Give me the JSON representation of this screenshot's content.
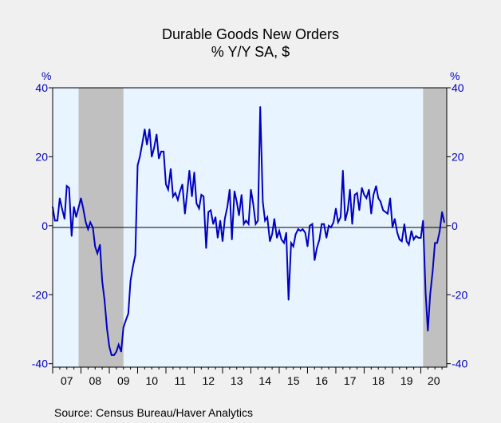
{
  "chart_data": {
    "type": "line",
    "title": "Durable Goods New Orders",
    "subtitle": "% Y/Y   SA, $",
    "ylabel_left": "%",
    "ylabel_right": "%",
    "source": "Source:  Census Bureau/Haver Analytics",
    "ylim": [
      -41,
      40
    ],
    "yticks": [
      40,
      20,
      0,
      -20,
      -40
    ],
    "ytick_labels": [
      "40",
      "20",
      "0",
      "-20",
      "-40"
    ],
    "x_range": [
      2007.0,
      2020.917
    ],
    "xtick_labels": [
      "07",
      "08",
      "09",
      "10",
      "11",
      "12",
      "13",
      "14",
      "15",
      "16",
      "17",
      "18",
      "19",
      "20"
    ],
    "recessions": [
      [
        2007.917,
        2009.5
      ],
      [
        2020.083,
        2020.917
      ]
    ],
    "colors": {
      "line": "#0000c0",
      "recession": "#c0c0c0",
      "plot_bg": "#e8f4ff",
      "zero_line": "#000000"
    },
    "series": [
      {
        "values": [
          [
            2007.0,
            5.5
          ],
          [
            2007.08,
            1.5
          ],
          [
            2007.17,
            1.5
          ],
          [
            2007.25,
            8.0
          ],
          [
            2007.33,
            5.0
          ],
          [
            2007.42,
            2.0
          ],
          [
            2007.5,
            11.5
          ],
          [
            2007.58,
            11.0
          ],
          [
            2007.67,
            -3.0
          ],
          [
            2007.75,
            5.5
          ],
          [
            2007.83,
            2.5
          ],
          [
            2007.92,
            5.5
          ],
          [
            2008.0,
            8.0
          ],
          [
            2008.08,
            5.0
          ],
          [
            2008.17,
            1.0
          ],
          [
            2008.25,
            -1.0
          ],
          [
            2008.33,
            1.0
          ],
          [
            2008.42,
            -0.5
          ],
          [
            2008.5,
            -6.0
          ],
          [
            2008.58,
            -8.0
          ],
          [
            2008.67,
            -5.5
          ],
          [
            2008.75,
            -16.0
          ],
          [
            2008.83,
            -21.5
          ],
          [
            2008.92,
            -30.0
          ],
          [
            2009.0,
            -35.0
          ],
          [
            2009.08,
            -37.5
          ],
          [
            2009.17,
            -37.5
          ],
          [
            2009.25,
            -36.5
          ],
          [
            2009.33,
            -34.5
          ],
          [
            2009.42,
            -36.5
          ],
          [
            2009.5,
            -29.5
          ],
          [
            2009.58,
            -27.5
          ],
          [
            2009.67,
            -25.5
          ],
          [
            2009.75,
            -16.0
          ],
          [
            2009.83,
            -12.0
          ],
          [
            2009.92,
            -8.5
          ],
          [
            2010.0,
            17.5
          ],
          [
            2010.08,
            20.0
          ],
          [
            2010.17,
            24.0
          ],
          [
            2010.25,
            28.0
          ],
          [
            2010.33,
            23.5
          ],
          [
            2010.42,
            28.0
          ],
          [
            2010.5,
            20.0
          ],
          [
            2010.58,
            22.5
          ],
          [
            2010.67,
            26.5
          ],
          [
            2010.75,
            19.5
          ],
          [
            2010.83,
            21.5
          ],
          [
            2010.92,
            21.5
          ],
          [
            2011.0,
            12.0
          ],
          [
            2011.08,
            10.5
          ],
          [
            2011.17,
            16.5
          ],
          [
            2011.25,
            8.5
          ],
          [
            2011.33,
            9.5
          ],
          [
            2011.42,
            7.5
          ],
          [
            2011.5,
            10.0
          ],
          [
            2011.58,
            12.0
          ],
          [
            2011.67,
            3.5
          ],
          [
            2011.75,
            9.5
          ],
          [
            2011.83,
            16.0
          ],
          [
            2011.92,
            8.5
          ],
          [
            2012.0,
            15.5
          ],
          [
            2012.08,
            6.5
          ],
          [
            2012.17,
            5.0
          ],
          [
            2012.25,
            9.0
          ],
          [
            2012.33,
            8.5
          ],
          [
            2012.42,
            -6.5
          ],
          [
            2012.5,
            4.0
          ],
          [
            2012.58,
            4.5
          ],
          [
            2012.67,
            0.5
          ],
          [
            2012.75,
            2.5
          ],
          [
            2012.83,
            -3.5
          ],
          [
            2012.92,
            1.5
          ],
          [
            2013.0,
            -4.5
          ],
          [
            2013.08,
            2.0
          ],
          [
            2013.17,
            5.5
          ],
          [
            2013.25,
            10.5
          ],
          [
            2013.33,
            -4.0
          ],
          [
            2013.42,
            10.0
          ],
          [
            2013.5,
            7.0
          ],
          [
            2013.58,
            3.0
          ],
          [
            2013.67,
            9.0
          ],
          [
            2013.75,
            0.5
          ],
          [
            2013.83,
            1.5
          ],
          [
            2013.92,
            0.5
          ],
          [
            2014.0,
            10.5
          ],
          [
            2014.08,
            6.5
          ],
          [
            2014.17,
            0.5
          ],
          [
            2014.25,
            1.5
          ],
          [
            2014.33,
            34.5
          ],
          [
            2014.42,
            7.0
          ],
          [
            2014.5,
            1.5
          ],
          [
            2014.58,
            2.5
          ],
          [
            2014.67,
            -4.5
          ],
          [
            2014.75,
            -2.5
          ],
          [
            2014.83,
            2.0
          ],
          [
            2014.92,
            -3.5
          ],
          [
            2015.0,
            -1.5
          ],
          [
            2015.08,
            -4.0
          ],
          [
            2015.17,
            -5.0
          ],
          [
            2015.25,
            -2.0
          ],
          [
            2015.33,
            -21.5
          ],
          [
            2015.42,
            -5.0
          ],
          [
            2015.5,
            -6.0
          ],
          [
            2015.58,
            -2.5
          ],
          [
            2015.67,
            -1.0
          ],
          [
            2015.75,
            -1.5
          ],
          [
            2015.83,
            -1.0
          ],
          [
            2015.92,
            -2.0
          ],
          [
            2016.0,
            -6.0
          ],
          [
            2016.08,
            0.0
          ],
          [
            2016.17,
            0.5
          ],
          [
            2016.25,
            -10.0
          ],
          [
            2016.33,
            -6.5
          ],
          [
            2016.42,
            -4.0
          ],
          [
            2016.5,
            0.5
          ],
          [
            2016.58,
            0.5
          ],
          [
            2016.67,
            -3.5
          ],
          [
            2016.75,
            0.0
          ],
          [
            2016.83,
            -0.5
          ],
          [
            2016.92,
            1.0
          ],
          [
            2017.0,
            5.0
          ],
          [
            2017.08,
            1.0
          ],
          [
            2017.17,
            2.5
          ],
          [
            2017.25,
            16.0
          ],
          [
            2017.33,
            1.5
          ],
          [
            2017.42,
            4.5
          ],
          [
            2017.5,
            10.5
          ],
          [
            2017.58,
            0.5
          ],
          [
            2017.67,
            9.0
          ],
          [
            2017.75,
            9.5
          ],
          [
            2017.83,
            4.5
          ],
          [
            2017.92,
            11.0
          ],
          [
            2018.0,
            9.0
          ],
          [
            2018.08,
            8.0
          ],
          [
            2018.17,
            10.5
          ],
          [
            2018.25,
            3.5
          ],
          [
            2018.33,
            9.0
          ],
          [
            2018.42,
            11.5
          ],
          [
            2018.5,
            8.0
          ],
          [
            2018.58,
            7.0
          ],
          [
            2018.67,
            4.5
          ],
          [
            2018.75,
            4.0
          ],
          [
            2018.83,
            3.5
          ],
          [
            2018.92,
            8.0
          ],
          [
            2019.0,
            -0.5
          ],
          [
            2019.08,
            2.0
          ],
          [
            2019.17,
            -2.0
          ],
          [
            2019.25,
            -4.0
          ],
          [
            2019.33,
            -4.5
          ],
          [
            2019.42,
            0.5
          ],
          [
            2019.5,
            -4.5
          ],
          [
            2019.58,
            -5.5
          ],
          [
            2019.67,
            -1.5
          ],
          [
            2019.75,
            -4.0
          ],
          [
            2019.83,
            -3.0
          ],
          [
            2019.92,
            -3.5
          ],
          [
            2020.0,
            -3.5
          ],
          [
            2020.08,
            1.5
          ],
          [
            2020.17,
            -19.5
          ],
          [
            2020.25,
            -30.5
          ],
          [
            2020.33,
            -20.0
          ],
          [
            2020.42,
            -13.0
          ],
          [
            2020.5,
            -5.0
          ],
          [
            2020.58,
            -5.0
          ],
          [
            2020.67,
            -1.5
          ],
          [
            2020.75,
            4.0
          ],
          [
            2020.83,
            1.0
          ]
        ]
      }
    ]
  }
}
